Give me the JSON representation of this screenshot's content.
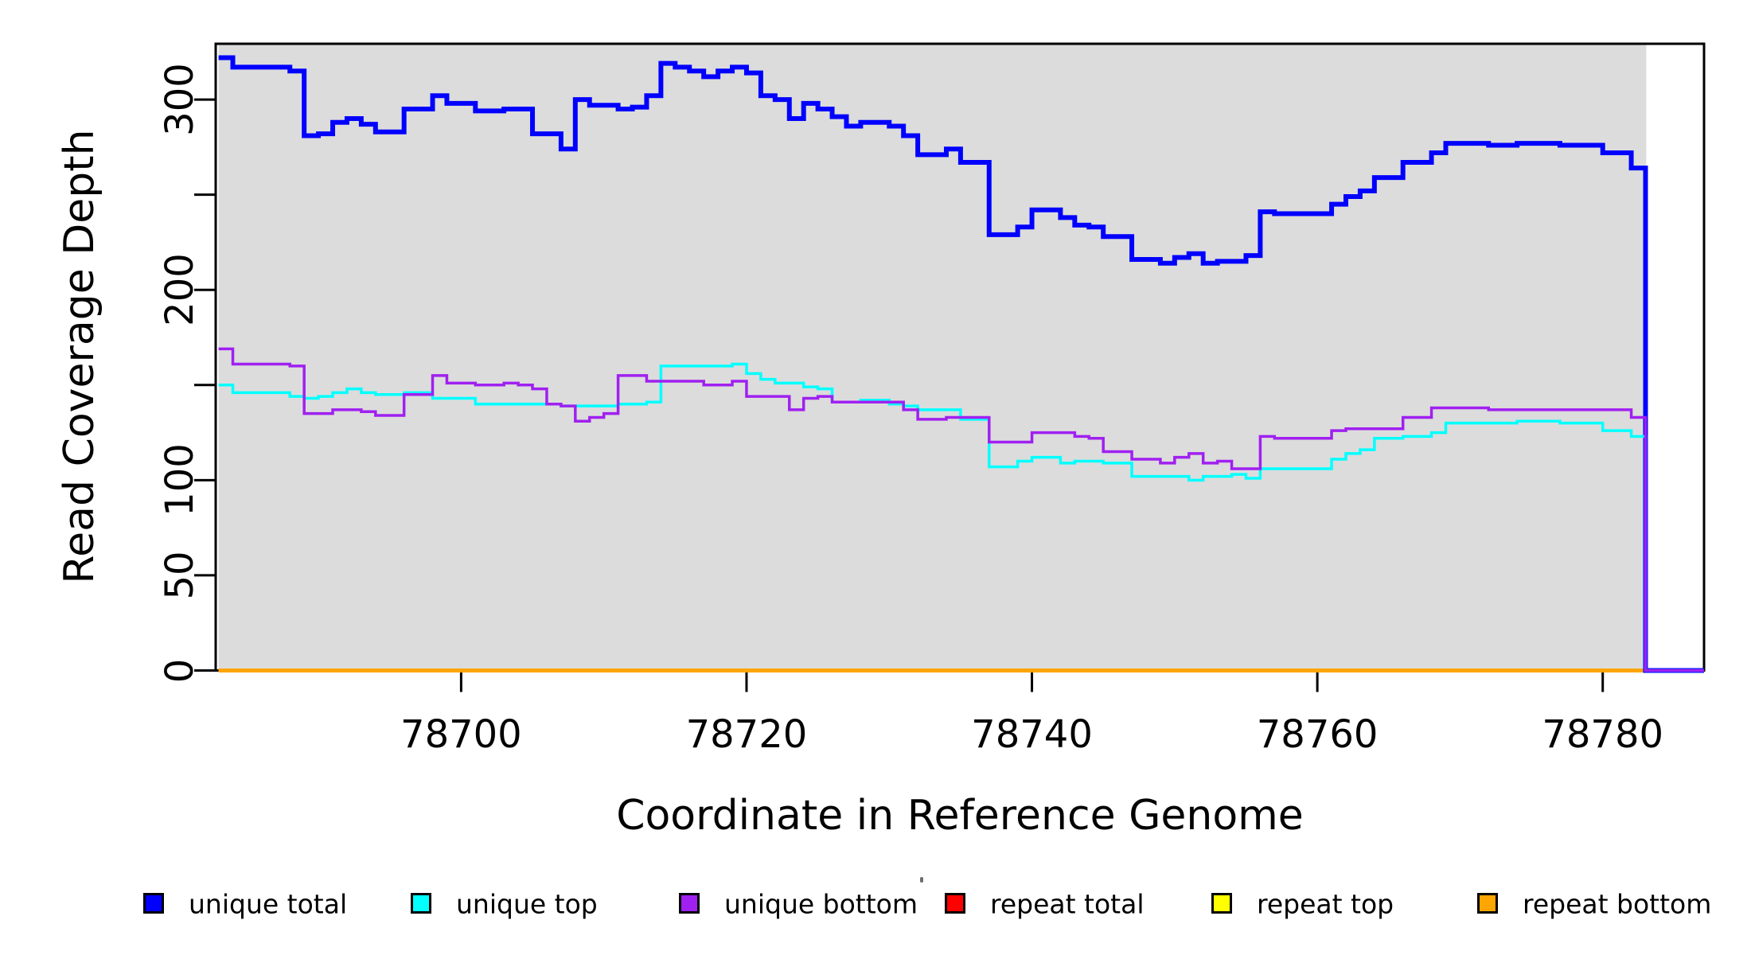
{
  "figure": {
    "x_axis_label": "Coordinate in Reference Genome",
    "y_axis_label": "Read Coverage Depth"
  },
  "legend": {
    "items": [
      {
        "label": "unique total",
        "color": "#0000ff"
      },
      {
        "label": "unique top",
        "color": "#00ffff"
      },
      {
        "label": "unique bottom",
        "color": "#a020f0"
      },
      {
        "label": "repeat total",
        "color": "#ff0000"
      },
      {
        "label": "repeat top",
        "color": "#ffff00"
      },
      {
        "label": "repeat bottom",
        "color": "#ffa500"
      }
    ]
  },
  "chart_data": {
    "type": "line",
    "subtype": "step",
    "title": "",
    "xlabel": "Coordinate in Reference Genome",
    "ylabel": "Read Coverage Depth",
    "xlim": [
      78682.8,
      78787.1
    ],
    "ylim": [
      0,
      329.3
    ],
    "x_ticks": [
      78700,
      78720,
      78740,
      78760,
      78780
    ],
    "y_ticks": [
      0,
      50,
      100,
      150,
      200,
      250,
      300
    ],
    "y_ticks_labeled": [
      0,
      50,
      100,
      200,
      300
    ],
    "grid": false,
    "plot_background": "#dcdcdc",
    "data_background_note": "gray band spans the data range only",
    "legend_position": "bottom",
    "x_start": 78683,
    "x_step": 1,
    "data_x_end": 78783,
    "series": [
      {
        "name": "unique total",
        "color": "#0000ff",
        "extends_to_plot_edge": true,
        "values": [
          322,
          317,
          317,
          317,
          317,
          315,
          281,
          282,
          288,
          290,
          287,
          283,
          283,
          295,
          295,
          302,
          298,
          298,
          294,
          294,
          295,
          295,
          282,
          282,
          274,
          300,
          297,
          297,
          295,
          296,
          302,
          319,
          317,
          315,
          312,
          315,
          317,
          314,
          302,
          300,
          290,
          298,
          295,
          291,
          286,
          288,
          288,
          286,
          281,
          271,
          271,
          274,
          267,
          267,
          229,
          229,
          233,
          242,
          242,
          238,
          234,
          233,
          228,
          228,
          216,
          216,
          214,
          217,
          219,
          214,
          215,
          215,
          218,
          241,
          240,
          240,
          240,
          240,
          245,
          249,
          252,
          259,
          259,
          267,
          267,
          272,
          277,
          277,
          277,
          276,
          276,
          277,
          277,
          277,
          276,
          276,
          276,
          272,
          272,
          264
        ]
      },
      {
        "name": "unique top",
        "color": "#00ffff",
        "extends_to_plot_edge": true,
        "values": [
          150,
          146,
          146,
          146,
          146,
          144,
          143,
          144,
          146,
          148,
          146,
          145,
          145,
          146,
          146,
          143,
          143,
          143,
          140,
          140,
          140,
          140,
          140,
          140,
          139,
          139,
          139,
          139,
          140,
          140,
          141,
          160,
          160,
          160,
          160,
          160,
          161,
          156,
          153,
          151,
          151,
          149,
          148,
          141,
          141,
          142,
          142,
          140,
          139,
          137,
          137,
          137,
          132,
          132,
          107,
          107,
          110,
          112,
          112,
          109,
          110,
          110,
          109,
          109,
          102,
          102,
          102,
          102,
          100,
          102,
          102,
          103,
          101,
          106,
          106,
          106,
          106,
          106,
          111,
          114,
          116,
          122,
          122,
          123,
          123,
          125,
          130,
          130,
          130,
          130,
          130,
          131,
          131,
          131,
          130,
          130,
          130,
          126,
          126,
          123
        ]
      },
      {
        "name": "unique bottom",
        "color": "#a020f0",
        "extends_to_plot_edge": true,
        "values": [
          169,
          161,
          161,
          161,
          161,
          160,
          135,
          135,
          137,
          137,
          136,
          134,
          134,
          145,
          145,
          155,
          151,
          151,
          150,
          150,
          151,
          150,
          148,
          140,
          139,
          131,
          133,
          135,
          155,
          155,
          152,
          152,
          152,
          152,
          150,
          150,
          152,
          144,
          144,
          144,
          137,
          143,
          144,
          141,
          141,
          141,
          141,
          141,
          137,
          132,
          132,
          133,
          133,
          133,
          120,
          120,
          120,
          125,
          125,
          125,
          123,
          122,
          115,
          115,
          111,
          111,
          109,
          112,
          114,
          109,
          110,
          106,
          106,
          123,
          122,
          122,
          122,
          122,
          126,
          127,
          127,
          127,
          127,
          133,
          133,
          138,
          138,
          138,
          138,
          137,
          137,
          137,
          137,
          137,
          137,
          137,
          137,
          137,
          137,
          133
        ]
      },
      {
        "name": "repeat total",
        "color": "#ff0000",
        "constant": 0,
        "x_range": [
          78683,
          78783
        ]
      },
      {
        "name": "repeat top",
        "color": "#ffff00",
        "constant": 0,
        "x_range": [
          78683,
          78783
        ]
      },
      {
        "name": "repeat bottom",
        "color": "#ffa500",
        "constant": 0,
        "x_range": [
          78683,
          78783
        ]
      }
    ]
  }
}
